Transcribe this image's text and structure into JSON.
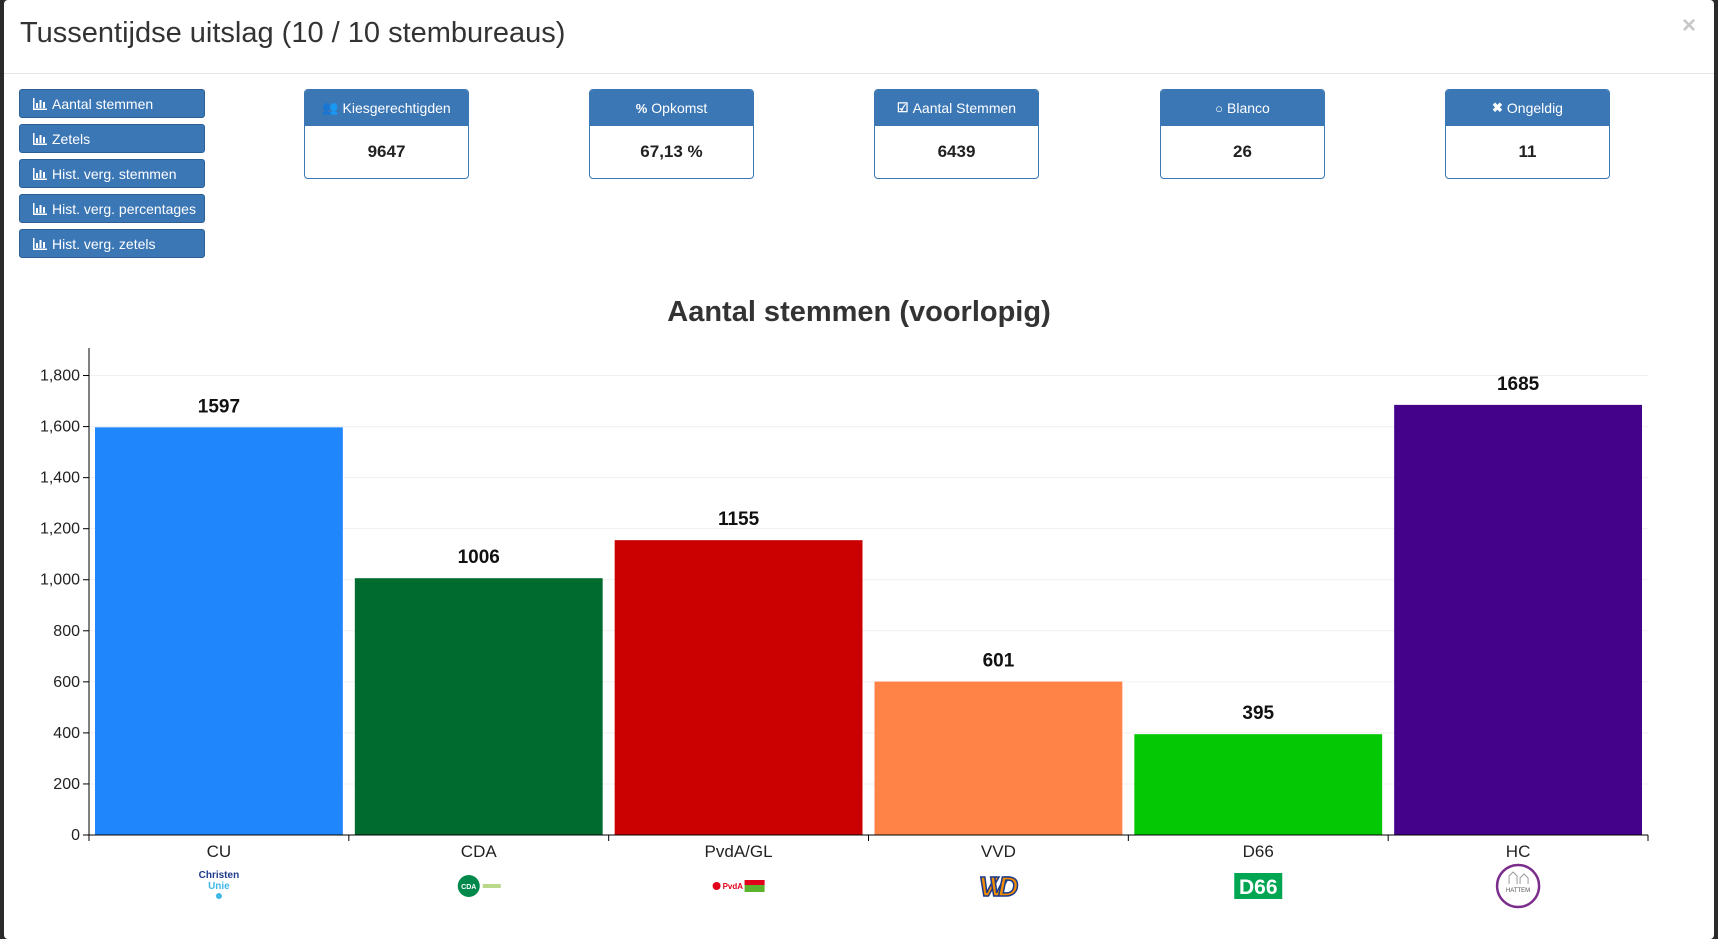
{
  "modal": {
    "title": "Tussentijdse uitslag (10 / 10 stembureaus)",
    "close_glyph": "×"
  },
  "side_buttons": [
    {
      "label": "Aantal stemmen",
      "icon": "bar-chart-icon"
    },
    {
      "label": "Zetels",
      "icon": "bar-chart-icon"
    },
    {
      "label": "Hist. verg. stemmen",
      "icon": "bar-chart-icon"
    },
    {
      "label": "Hist. verg. percentages",
      "icon": "bar-chart-icon"
    },
    {
      "label": "Hist. verg. zetels",
      "icon": "bar-chart-icon"
    }
  ],
  "stats": [
    {
      "label": "Kiesgerechtigden",
      "value": "9647",
      "icon": "users-icon"
    },
    {
      "label": "Opkomst",
      "value": "67,13 %",
      "icon": "percent-icon"
    },
    {
      "label": "Aantal Stemmen",
      "value": "6439",
      "icon": "check-square-icon"
    },
    {
      "label": "Blanco",
      "value": "26",
      "icon": "circle-icon"
    },
    {
      "label": "Ongeldig",
      "value": "11",
      "icon": "times-icon"
    }
  ],
  "colors": {
    "primary_button": "#3b76b5"
  },
  "chart_data": {
    "type": "bar",
    "title": "Aantal stemmen (voorlopig)",
    "categories": [
      "CU",
      "CDA",
      "PvdA/GL",
      "VVD",
      "D66",
      "HC"
    ],
    "values": [
      1597,
      1006,
      1155,
      601,
      395,
      1685
    ],
    "colors": [
      "#1f87fb",
      "#006b2e",
      "#cb0000",
      "#ff8247",
      "#05c805",
      "#44028a"
    ],
    "ylim": [
      0,
      1900
    ],
    "yticks": [
      0,
      200,
      400,
      600,
      800,
      1000,
      1200,
      1400,
      1600,
      1800
    ],
    "ytick_labels": [
      "0",
      "200",
      "400",
      "600",
      "800",
      "1,000",
      "1,200",
      "1,400",
      "1,600",
      "1,800"
    ],
    "logos": [
      {
        "text": "Christen Unie",
        "kind": "cu-logo"
      },
      {
        "text": "CDA",
        "kind": "cda-logo"
      },
      {
        "text": "PvdA GROEN LINKS",
        "kind": "pvda-gl-logo"
      },
      {
        "text": "VVD",
        "kind": "vvd-logo"
      },
      {
        "text": "D66",
        "kind": "d66-logo"
      },
      {
        "text": "HATTEM",
        "kind": "hc-logo"
      }
    ],
    "grid": true,
    "legend": "none"
  }
}
